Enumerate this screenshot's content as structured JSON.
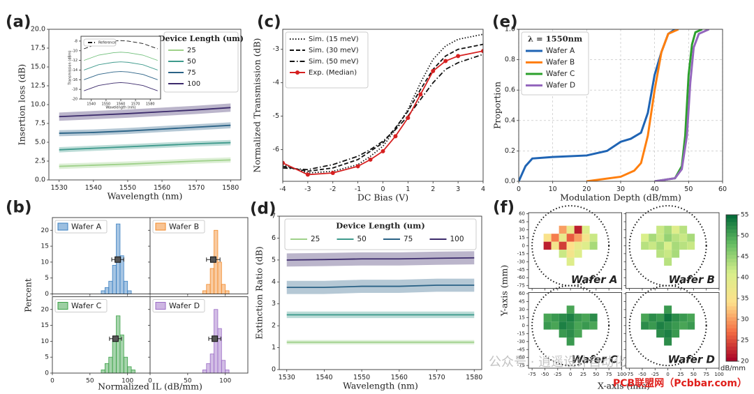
{
  "chart_data": [
    {
      "type": "line",
      "panel_label": "(a)",
      "xlabel": "Wavelength (nm)",
      "ylabel": "Insertion loss (dB)",
      "legend_title": "Device Length (um)",
      "legend": "upper right",
      "x": [
        1530,
        1540,
        1550,
        1560,
        1570,
        1580
      ],
      "xlim": [
        1527,
        1583
      ],
      "xticks": [
        1530,
        1540,
        1550,
        1560,
        1570,
        1580
      ],
      "ylim": [
        0,
        20
      ],
      "yticks": [
        {
          "value": 0,
          "label": "0.0"
        },
        2.5,
        {
          "value": 5,
          "label": "5.0"
        },
        7.5,
        {
          "value": 10,
          "label": "10.0"
        },
        12.5,
        {
          "value": 15,
          "label": "15.0"
        },
        17.5,
        {
          "value": 20,
          "label": "20.0"
        }
      ],
      "series": [
        {
          "name": "25",
          "color": "#9fd18a",
          "values": [
            1.8,
            1.95,
            2.1,
            2.3,
            2.5,
            2.65
          ],
          "spread": 0.35
        },
        {
          "name": "50",
          "color": "#3e9a8c",
          "values": [
            4.0,
            4.2,
            4.4,
            4.6,
            4.8,
            4.95
          ],
          "spread": 0.35
        },
        {
          "name": "75",
          "color": "#2a6286",
          "values": [
            6.2,
            6.3,
            6.5,
            6.75,
            7.0,
            7.25
          ],
          "spread": 0.4
        },
        {
          "name": "100",
          "color": "#3b2a6b",
          "values": [
            8.4,
            8.6,
            8.8,
            9.05,
            9.3,
            9.6
          ],
          "spread": 0.55
        }
      ]
    },
    {
      "type": "line",
      "inset": true,
      "xlabel": "Wavelength (nm)",
      "ylabel": "Transmission (dBm)",
      "legend": "upper left",
      "x": [
        1535,
        1545,
        1555,
        1560,
        1565,
        1575,
        1585
      ],
      "xlim": [
        1533,
        1587
      ],
      "xticks": [
        1540,
        1550,
        1560,
        1570,
        1580
      ],
      "ylim": [
        -20,
        -7
      ],
      "yticks": [
        -8,
        -10,
        -12,
        -14,
        -16,
        -18,
        -20
      ],
      "series": [
        {
          "name": "Reference",
          "color": "#111",
          "dash": "dashed",
          "values": [
            -9.6,
            -8.5,
            -8.0,
            -7.9,
            -8.0,
            -8.5,
            -9.6
          ]
        },
        {
          "color": "#6fbf7a",
          "values": [
            -12,
            -10.9,
            -10.4,
            -10.3,
            -10.4,
            -10.9,
            -12
          ]
        },
        {
          "color": "#3e9a8c",
          "values": [
            -14,
            -12.9,
            -12.4,
            -12.3,
            -12.4,
            -12.9,
            -14
          ]
        },
        {
          "color": "#2a6286",
          "values": [
            -16,
            -14.9,
            -14.4,
            -14.3,
            -14.4,
            -14.9,
            -16
          ]
        },
        {
          "color": "#3b2a6b",
          "values": [
            -18.3,
            -17.2,
            -16.7,
            -16.6,
            -16.7,
            -17.2,
            -18.3
          ]
        }
      ]
    },
    {
      "type": "histogram",
      "panel_label": "(b)",
      "xlabel": "Normalized IL (dB/mm)",
      "ylabel": "Percent",
      "xlim": [
        0,
        130
      ],
      "xticks": [
        0,
        50,
        100
      ],
      "ylim": [
        0,
        24
      ],
      "yticks": [
        0,
        5,
        10,
        15,
        20
      ],
      "subplots": [
        {
          "name": "Wafer A",
          "color": "#3a7fc1",
          "bins": [
            60,
            65,
            70,
            75,
            80,
            85,
            90,
            95,
            100,
            105,
            110
          ],
          "counts": [
            0,
            1,
            2,
            4,
            9,
            22,
            12,
            4,
            1,
            0
          ],
          "mean": 87,
          "error": 8
        },
        {
          "name": "Wafer B",
          "color": "#f28a2a",
          "bins": [
            60,
            65,
            70,
            75,
            80,
            85,
            90,
            95,
            100,
            105,
            110
          ],
          "counts": [
            0,
            0,
            1,
            3,
            8,
            20,
            10,
            3,
            1,
            0
          ],
          "mean": 84,
          "error": 9
        },
        {
          "name": "Wafer C",
          "color": "#3aa046",
          "bins": [
            60,
            65,
            70,
            75,
            80,
            85,
            90,
            95,
            100,
            105,
            110
          ],
          "counts": [
            0,
            1,
            3,
            5,
            10,
            18,
            12,
            5,
            2,
            1
          ],
          "mean": 84,
          "error": 8
        },
        {
          "name": "Wafer D",
          "color": "#9b6cc6",
          "bins": [
            60,
            65,
            70,
            75,
            80,
            85,
            90,
            95,
            100,
            105,
            110
          ],
          "counts": [
            0,
            0,
            1,
            3,
            6,
            20,
            14,
            4,
            1,
            0
          ],
          "mean": 86,
          "error": 8
        }
      ]
    },
    {
      "type": "line",
      "panel_label": "(c)",
      "xlabel": "DC Bias (V)",
      "ylabel": "Normalized Transmission (dB)",
      "legend": "upper left",
      "x": [
        -4,
        -3,
        -2,
        -1,
        -0.5,
        0,
        0.5,
        1,
        1.5,
        2,
        2.5,
        3,
        4
      ],
      "xlim": [
        -4,
        4
      ],
      "xticks": [
        -4,
        -3,
        -2,
        -1,
        0,
        1,
        2,
        3,
        4
      ],
      "ylim": [
        -6.95,
        -2.4
      ],
      "yticks": [
        -6,
        -5,
        -4,
        -3
      ],
      "series": [
        {
          "name": "Sim. (15 meV)",
          "color": "#111",
          "dash": "dotted",
          "values": [
            -6.45,
            -6.7,
            -6.65,
            -6.45,
            -6.2,
            -5.9,
            -5.4,
            -4.8,
            -4.0,
            -3.3,
            -2.9,
            -2.7,
            -2.55
          ]
        },
        {
          "name": "Sim. (30 meV)",
          "color": "#111",
          "dash": "dashed",
          "values": [
            -6.5,
            -6.65,
            -6.55,
            -6.3,
            -6.05,
            -5.8,
            -5.35,
            -4.85,
            -4.2,
            -3.6,
            -3.2,
            -3.0,
            -2.85
          ]
        },
        {
          "name": "Sim. (50 meV)",
          "color": "#111",
          "dash": "dashdot",
          "values": [
            -6.55,
            -6.6,
            -6.45,
            -6.2,
            -6.0,
            -5.75,
            -5.4,
            -5.0,
            -4.5,
            -4.0,
            -3.6,
            -3.4,
            -3.15
          ]
        },
        {
          "name": "Exp. (Median)",
          "color": "#d62020",
          "marker": true,
          "values": [
            -6.4,
            -6.75,
            -6.7,
            -6.5,
            -6.3,
            -6.05,
            -5.6,
            -5.05,
            -4.35,
            -3.65,
            -3.35,
            -3.2,
            -3.05
          ]
        }
      ]
    },
    {
      "type": "line",
      "panel_label": "(d)",
      "xlabel": "Wavelength (nm)",
      "ylabel": "Extinction Ratio (dB)",
      "legend_title": "Device Length (um)",
      "legend": "upper center",
      "x": [
        1530,
        1540,
        1550,
        1560,
        1570,
        1580
      ],
      "xlim": [
        1528,
        1582
      ],
      "xticks": [
        1530,
        1540,
        1550,
        1560,
        1570,
        1580
      ],
      "ylim": [
        0,
        7
      ],
      "yticks": [
        0,
        1,
        2,
        3,
        4,
        5,
        6,
        7
      ],
      "series": [
        {
          "name": "25",
          "color": "#9fd18a",
          "values": [
            1.25,
            1.25,
            1.25,
            1.25,
            1.25,
            1.25
          ],
          "spread": 0.1
        },
        {
          "name": "50",
          "color": "#3e9a8c",
          "values": [
            2.5,
            2.5,
            2.5,
            2.5,
            2.5,
            2.5
          ],
          "spread": 0.15
        },
        {
          "name": "75",
          "color": "#2a6286",
          "values": [
            3.75,
            3.75,
            3.8,
            3.8,
            3.85,
            3.85
          ],
          "spread": 0.3
        },
        {
          "name": "100",
          "color": "#3b2a6b",
          "values": [
            5.0,
            5.02,
            5.05,
            5.05,
            5.08,
            5.1
          ],
          "spread": 0.3
        }
      ]
    },
    {
      "type": "line",
      "panel_label": "(e)",
      "xlabel": "Modulation Depth (dB/mm)",
      "ylabel": "Proportion",
      "legend_title": "λ = 1550nm",
      "legend": "upper left",
      "grid": true,
      "xlim": [
        0,
        60
      ],
      "xticks": [
        0,
        10,
        20,
        30,
        40,
        50,
        60
      ],
      "ylim": [
        0,
        1
      ],
      "yticks": [
        {
          "value": 0,
          "label": "0.0"
        },
        0.2,
        0.4,
        0.6,
        0.8,
        {
          "value": 1,
          "label": "1.0"
        }
      ],
      "series": [
        {
          "name": "Wafer A",
          "color": "#1f64b4",
          "width": 3,
          "x": [
            0,
            2,
            4,
            10,
            20,
            26,
            30,
            33,
            36,
            38,
            40,
            42,
            44,
            46
          ],
          "values": [
            0,
            0.1,
            0.15,
            0.16,
            0.17,
            0.2,
            0.26,
            0.28,
            0.32,
            0.45,
            0.7,
            0.85,
            0.97,
            1.0
          ]
        },
        {
          "name": "Wafer B",
          "color": "#ff7f0e",
          "width": 3,
          "x": [
            20,
            30,
            34,
            36,
            38,
            40,
            42,
            44,
            47
          ],
          "values": [
            0,
            0.03,
            0.07,
            0.12,
            0.3,
            0.6,
            0.85,
            0.97,
            1.0
          ]
        },
        {
          "name": "Wafer C",
          "color": "#2ca02c",
          "width": 3,
          "x": [
            40,
            46,
            48,
            49,
            50,
            51,
            52,
            54
          ],
          "values": [
            0,
            0.02,
            0.1,
            0.3,
            0.7,
            0.9,
            0.98,
            1.0
          ]
        },
        {
          "name": "Wafer D",
          "color": "#9467bd",
          "width": 3,
          "x": [
            40,
            46,
            48,
            49.5,
            50.5,
            51.5,
            53,
            56
          ],
          "values": [
            0,
            0.02,
            0.08,
            0.3,
            0.65,
            0.88,
            0.97,
            1.0
          ]
        }
      ]
    },
    {
      "type": "heatmap",
      "panel_label": "(f)",
      "xlabel": "X-axis (mm)",
      "ylabel": "Y-axis (mm)",
      "x": [
        -45,
        -30,
        -15,
        0,
        15,
        30,
        45
      ],
      "y": [
        30,
        15,
        0,
        -15,
        -30
      ],
      "xlim": [
        -82,
        100
      ],
      "xticks": [
        -75,
        -50,
        -25,
        0,
        25,
        50,
        75,
        100
      ],
      "ylim": [
        -80,
        62
      ],
      "yticks": [
        -75,
        -60,
        -45,
        -30,
        -15,
        0,
        15,
        30,
        45,
        60
      ],
      "colorbar": {
        "lim": [
          20,
          55
        ],
        "ticks": [
          20,
          25,
          30,
          35,
          40,
          45,
          50,
          55
        ],
        "label": "dB/mm"
      },
      "subplots": [
        {
          "name": "Wafer A",
          "values": [
            [
              null,
              null,
              30,
              38,
              22,
              40,
              null
            ],
            [
              35,
              28,
              38,
              26,
              30,
              36,
              42
            ],
            [
              22,
              36,
              24,
              34,
              38,
              40,
              44
            ],
            [
              null,
              null,
              42,
              36,
              40,
              null,
              null
            ],
            [
              null,
              null,
              null,
              40,
              null,
              null,
              null
            ]
          ]
        },
        {
          "name": "Wafer B",
          "values": [
            [
              null,
              null,
              42,
              44,
              40,
              43,
              null
            ],
            [
              41,
              44,
              42,
              45,
              43,
              42,
              44
            ],
            [
              43,
              42,
              44,
              41,
              44,
              43,
              42
            ],
            [
              null,
              null,
              43,
              42,
              44,
              null,
              null
            ],
            [
              null,
              null,
              null,
              43,
              null,
              null,
              null
            ]
          ]
        },
        {
          "name": "Wafer C",
          "values": [
            [
              null,
              null,
              null,
              50,
              null,
              null,
              null
            ],
            [
              50,
              51,
              52,
              53,
              51,
              50,
              52
            ],
            [
              51,
              50,
              53,
              52,
              50,
              51,
              50
            ],
            [
              null,
              null,
              51,
              52,
              50,
              null,
              null
            ],
            [
              null,
              null,
              null,
              51,
              null,
              null,
              null
            ]
          ]
        },
        {
          "name": "Wafer D",
          "values": [
            [
              null,
              null,
              null,
              51,
              null,
              null,
              null
            ],
            [
              50,
              52,
              51,
              54,
              52,
              51,
              50
            ],
            [
              52,
              51,
              53,
              52,
              51,
              50,
              51
            ],
            [
              null,
              null,
              52,
              53,
              51,
              null,
              null
            ],
            [
              null,
              null,
              null,
              52,
              null,
              null,
              null
            ]
          ]
        }
      ]
    }
  ],
  "watermark": {
    "wechat": "公众号 · 逍遥设计自动化",
    "site": "PCB联盟网（Pcbbar.com）"
  }
}
